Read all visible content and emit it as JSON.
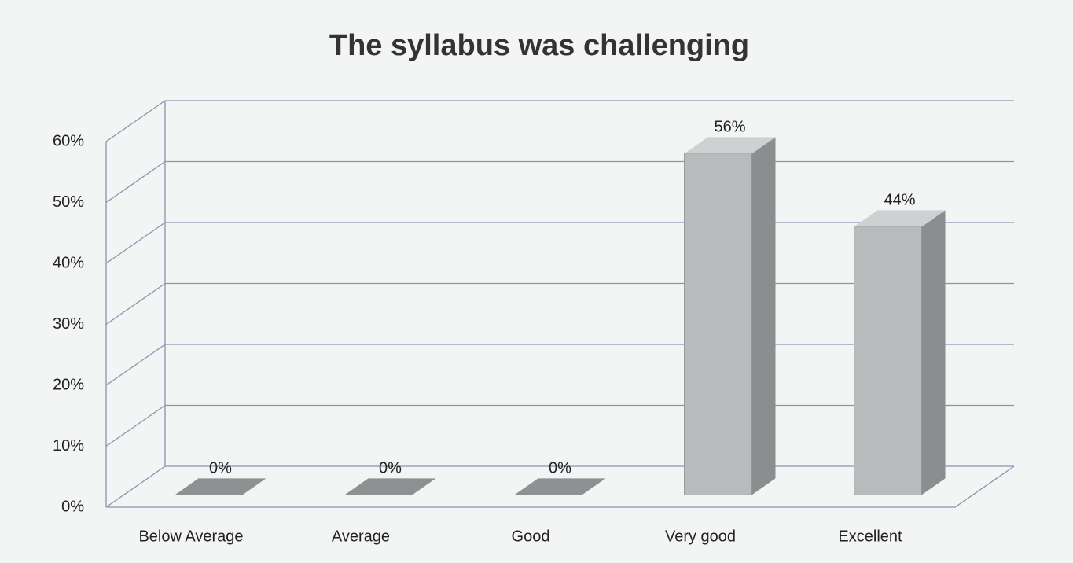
{
  "chart_data": {
    "type": "bar3d",
    "title": "The syllabus was challenging",
    "categories": [
      "Below Average",
      "Average",
      "Good",
      "Very good",
      "Excellent"
    ],
    "values": [
      0,
      0,
      0,
      56,
      44
    ],
    "value_labels": [
      "0%",
      "0%",
      "0%",
      "56%",
      "44%"
    ],
    "color": "#b9babc",
    "ylim": [
      0,
      60
    ],
    "yticks": [
      {
        "value": 0,
        "label": "0%"
      },
      {
        "value": 10,
        "label": "10%"
      },
      {
        "value": 20,
        "label": "20%"
      },
      {
        "value": 30,
        "label": "30%"
      },
      {
        "value": 40,
        "label": "40%"
      },
      {
        "value": 50,
        "label": "50%"
      },
      {
        "value": 60,
        "label": "60%"
      }
    ],
    "grid": true
  }
}
